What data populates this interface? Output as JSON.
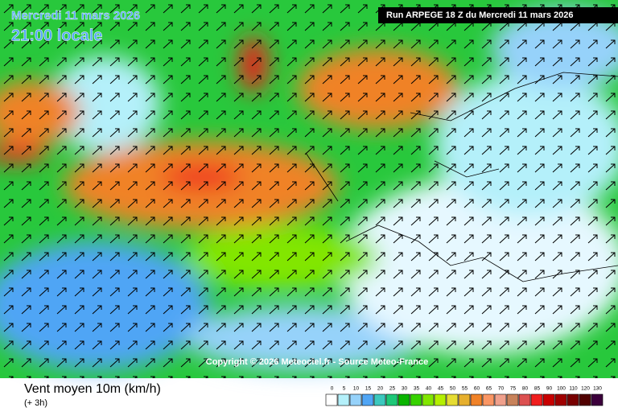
{
  "header": {
    "date": "Mercredi 11 mars 2026",
    "time": "21:00 locale",
    "run": "Run ARPEGE 18 Z du Mercredi 11 mars 2026"
  },
  "copyright": "Copyright © 2026 Meteociel.fr - Source Meteo-France",
  "footer": {
    "title": "Vent moyen 10m (km/h)",
    "step": "(+ 3h)"
  },
  "legend": {
    "ticks": [
      0,
      5,
      10,
      15,
      20,
      25,
      30,
      35,
      40,
      45,
      50,
      55,
      60,
      65,
      70,
      75,
      80,
      85,
      90,
      100,
      110,
      120,
      130
    ],
    "colors": [
      "#ffffff",
      "#b4f0fa",
      "#96d2fa",
      "#50a5f5",
      "#3cc8be",
      "#1ec878",
      "#0ab400",
      "#37d200",
      "#82e600",
      "#b4f000",
      "#e6dc32",
      "#e6af2d",
      "#f08228",
      "#fa9664",
      "#f0a08c",
      "#c8825a",
      "#dc5050",
      "#f01e1e",
      "#c80000",
      "#a00000",
      "#780000",
      "#500000",
      "#3c003c"
    ]
  }
}
